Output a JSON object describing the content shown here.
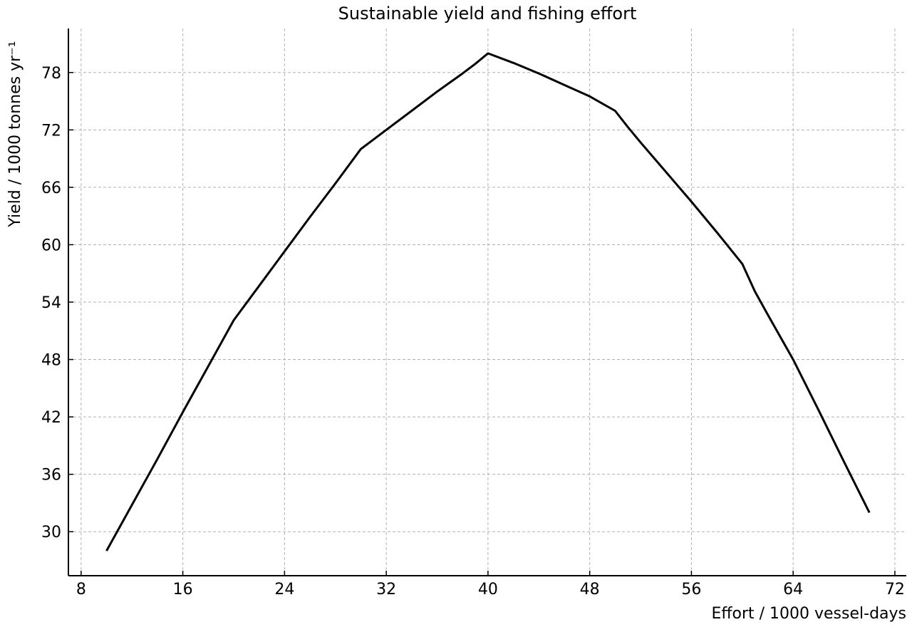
{
  "chart_data": {
    "type": "line",
    "title": "Sustainable yield and fishing effort",
    "xlabel": "Effort / 1000 vessel-days",
    "ylabel": "Yield / 1000 tonnes yr⁻¹",
    "x": [
      10,
      12,
      14,
      16,
      18,
      20,
      22,
      24,
      26,
      28,
      30,
      32,
      34,
      36,
      38,
      39,
      40,
      42,
      44,
      46,
      48,
      50,
      51,
      52,
      54,
      56,
      58,
      60,
      61,
      62,
      64,
      66,
      68,
      70
    ],
    "series": [
      {
        "name": "Yield",
        "color": "#000000",
        "values": [
          28,
          32.8,
          37.6,
          42.5,
          47.3,
          52.1,
          55.7,
          59.3,
          62.9,
          66.4,
          70,
          72,
          74,
          76,
          77.9,
          78.9,
          80,
          79,
          77.9,
          76.7,
          75.5,
          74,
          72.3,
          70.7,
          67.6,
          64.5,
          61.3,
          58,
          55.1,
          52.7,
          48,
          42.7,
          37.3,
          32
        ]
      }
    ],
    "xlim": [
      7,
      72.9
    ],
    "ylim": [
      25.4,
      82.6
    ],
    "xticks": [
      8,
      16,
      24,
      32,
      40,
      48,
      56,
      64,
      72
    ],
    "yticks": [
      30,
      36,
      42,
      48,
      54,
      60,
      66,
      72,
      78
    ],
    "grid": true
  }
}
